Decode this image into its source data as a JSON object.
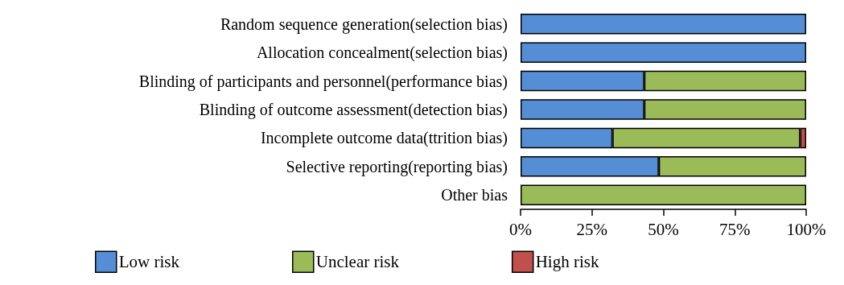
{
  "chart_data": {
    "type": "bar",
    "orientation": "horizontal",
    "stacked": true,
    "categories": [
      "Random sequence generation(selection bias)",
      "Allocation concealment(selection bias)",
      "Blinding of participants and personnel(performance bias)",
      "Blinding of outcome assessment(detection bias)",
      "Incomplete outcome data(ttrition bias)",
      "Selective reporting(reporting bias)",
      "Other bias"
    ],
    "series": [
      {
        "name": "Low risk",
        "color": "#558ed5",
        "values": [
          100,
          100,
          43.3,
          43.3,
          32.2,
          48.4,
          null
        ]
      },
      {
        "name": "Unclear risk",
        "color": "#9bbb59",
        "values": [
          null,
          null,
          56.7,
          56.7,
          65.7,
          51.6,
          100
        ]
      },
      {
        "name": "High risk",
        "color": "#c0504d",
        "values": [
          null,
          null,
          null,
          null,
          2.1,
          null,
          null
        ]
      }
    ],
    "xlim": [
      0,
      100
    ],
    "xticks": [
      {
        "value": 0,
        "label": "0%"
      },
      {
        "value": 25,
        "label": "25%"
      },
      {
        "value": 50,
        "label": "50%"
      },
      {
        "value": 75,
        "label": "75%"
      },
      {
        "value": 100,
        "label": "100%"
      }
    ],
    "grid": false,
    "legend": "bottom left"
  }
}
